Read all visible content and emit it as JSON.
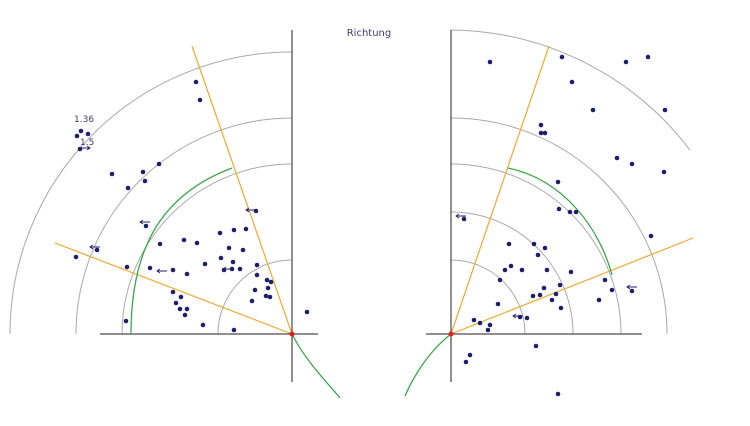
{
  "title": "Richtung",
  "labels": {
    "a": "1.36",
    "b": "1.5"
  },
  "colors": {
    "background": "#ffffff",
    "ring": "#a8a8a8",
    "axis": "#222222",
    "ray": "#f0a830",
    "curve": "#3aa64a",
    "point": "#1e1e6e",
    "origin": "#e02020",
    "arrow": "#1e1e6e"
  },
  "panels": [
    {
      "id": "left",
      "rays": [
        100,
        160
      ],
      "points": [
        [
          196,
          82
        ],
        [
          200,
          100
        ],
        [
          81,
          131
        ],
        [
          88,
          134
        ],
        [
          77,
          136
        ],
        [
          80,
          149
        ],
        [
          112,
          174
        ],
        [
          128,
          188
        ],
        [
          143,
          172
        ],
        [
          145,
          181
        ],
        [
          159,
          164
        ],
        [
          146,
          226
        ],
        [
          160,
          244
        ],
        [
          184,
          240
        ],
        [
          197,
          243
        ],
        [
          97,
          250
        ],
        [
          76,
          257
        ],
        [
          127,
          267
        ],
        [
          173,
          270
        ],
        [
          187,
          274
        ],
        [
          205,
          264
        ],
        [
          234,
          230
        ],
        [
          246,
          229
        ],
        [
          220,
          233
        ],
        [
          229,
          248
        ],
        [
          243,
          250
        ],
        [
          221,
          258
        ],
        [
          224,
          270
        ],
        [
          233,
          262
        ],
        [
          232,
          269
        ],
        [
          240,
          269
        ],
        [
          257,
          265
        ],
        [
          256,
          211
        ],
        [
          267,
          280
        ],
        [
          268,
          288
        ],
        [
          266,
          296
        ],
        [
          270,
          297
        ],
        [
          271,
          282
        ],
        [
          257,
          275
        ],
        [
          255,
          290
        ],
        [
          252,
          301
        ],
        [
          181,
          297
        ],
        [
          176,
          303
        ],
        [
          180,
          309
        ],
        [
          187,
          309
        ],
        [
          185,
          315
        ],
        [
          203,
          325
        ],
        [
          234,
          330
        ],
        [
          126,
          321
        ],
        [
          307,
          312
        ],
        [
          173,
          292
        ],
        [
          150,
          268
        ]
      ],
      "arrows": [
        [
          85,
          148,
          1
        ],
        [
          145,
          222,
          -1
        ],
        [
          95,
          247,
          -1
        ],
        [
          162,
          271,
          -1
        ],
        [
          251,
          210,
          -1
        ],
        [
          228,
          269,
          -1
        ]
      ]
    },
    {
      "id": "right",
      "rays": [
        20,
        72
      ],
      "points": [
        [
          490,
          62
        ],
        [
          562,
          57
        ],
        [
          626,
          62
        ],
        [
          648,
          57
        ],
        [
          572,
          82
        ],
        [
          593,
          110
        ],
        [
          665,
          110
        ],
        [
          541,
          125
        ],
        [
          545,
          133
        ],
        [
          541,
          133
        ],
        [
          617,
          158
        ],
        [
          632,
          164
        ],
        [
          664,
          172
        ],
        [
          558,
          182
        ],
        [
          559,
          209
        ],
        [
          570,
          212
        ],
        [
          576,
          212
        ],
        [
          651,
          236
        ],
        [
          464,
          219
        ],
        [
          509,
          244
        ],
        [
          534,
          244
        ],
        [
          545,
          248
        ],
        [
          538,
          255
        ],
        [
          511,
          266
        ],
        [
          505,
          270
        ],
        [
          522,
          270
        ],
        [
          500,
          280
        ],
        [
          547,
          270
        ],
        [
          571,
          272
        ],
        [
          560,
          285
        ],
        [
          556,
          294
        ],
        [
          552,
          300
        ],
        [
          544,
          288
        ],
        [
          533,
          296
        ],
        [
          540,
          295
        ],
        [
          605,
          280
        ],
        [
          599,
          300
        ],
        [
          612,
          290
        ],
        [
          632,
          291
        ],
        [
          561,
          308
        ],
        [
          527,
          318
        ],
        [
          520,
          317
        ],
        [
          498,
          304
        ],
        [
          474,
          320
        ],
        [
          480,
          323
        ],
        [
          488,
          330
        ],
        [
          490,
          325
        ],
        [
          470,
          355
        ],
        [
          466,
          362
        ],
        [
          536,
          346
        ],
        [
          558,
          394
        ]
      ],
      "arrows": [
        [
          461,
          216,
          -1
        ],
        [
          632,
          287,
          -1
        ],
        [
          518,
          316,
          -1
        ]
      ]
    }
  ]
}
